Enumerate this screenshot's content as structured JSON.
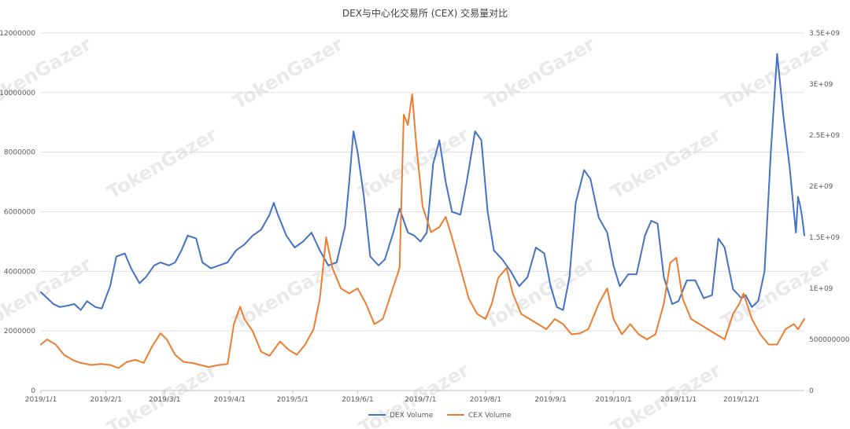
{
  "chart_data": {
    "type": "line",
    "title": "DEX与中心化交易所 (CEX) 交易量对比",
    "watermark": "TokenGazer",
    "x_start": "2019-01-01",
    "x_end": "2019-12-31",
    "x_ticks": [
      "2019/1/1",
      "2019/2/1",
      "2019/3/1",
      "2019/4/1",
      "2019/5/1",
      "2019/6/1",
      "2019/7/1",
      "2019/8/1",
      "2019/9/1",
      "2019/10/1",
      "2019/11/1",
      "2019/12/1"
    ],
    "y_left": {
      "min": 0,
      "max": 12000000,
      "ticks": [
        "0",
        "2000000",
        "4000000",
        "6000000",
        "8000000",
        "10000000",
        "12000000"
      ],
      "tick_values": [
        0,
        2000000,
        4000000,
        6000000,
        8000000,
        10000000,
        12000000
      ]
    },
    "y_right": {
      "min": 0,
      "max": 3500000000,
      "ticks": [
        "0",
        "500000000",
        "1E+09",
        "1.5E+09",
        "2E+09",
        "2.5E+09",
        "3E+09",
        "3.5E+09"
      ],
      "tick_values": [
        0,
        500000000,
        1000000000,
        1500000000,
        2000000000,
        2500000000,
        3000000000,
        3500000000
      ]
    },
    "grid": "horizontal",
    "legend_position": "bottom-center",
    "series": [
      {
        "name": "DEX Volume",
        "axis": "left",
        "color": "#4472C4",
        "points": [
          [
            "2019-01-01",
            3300000
          ],
          [
            "2019-01-04",
            3100000
          ],
          [
            "2019-01-07",
            2900000
          ],
          [
            "2019-01-10",
            2800000
          ],
          [
            "2019-01-14",
            2850000
          ],
          [
            "2019-01-17",
            2900000
          ],
          [
            "2019-01-20",
            2700000
          ],
          [
            "2019-01-23",
            3000000
          ],
          [
            "2019-01-27",
            2800000
          ],
          [
            "2019-01-30",
            2750000
          ],
          [
            "2019-02-03",
            3500000
          ],
          [
            "2019-02-06",
            4500000
          ],
          [
            "2019-02-10",
            4600000
          ],
          [
            "2019-02-13",
            4100000
          ],
          [
            "2019-02-17",
            3600000
          ],
          [
            "2019-02-20",
            3800000
          ],
          [
            "2019-02-24",
            4200000
          ],
          [
            "2019-02-27",
            4300000
          ],
          [
            "2019-03-03",
            4200000
          ],
          [
            "2019-03-06",
            4300000
          ],
          [
            "2019-03-09",
            4700000
          ],
          [
            "2019-03-12",
            5200000
          ],
          [
            "2019-03-16",
            5100000
          ],
          [
            "2019-03-19",
            4300000
          ],
          [
            "2019-03-23",
            4100000
          ],
          [
            "2019-03-27",
            4200000
          ],
          [
            "2019-03-31",
            4300000
          ],
          [
            "2019-04-04",
            4700000
          ],
          [
            "2019-04-08",
            4900000
          ],
          [
            "2019-04-12",
            5200000
          ],
          [
            "2019-04-16",
            5400000
          ],
          [
            "2019-04-20",
            5900000
          ],
          [
            "2019-04-22",
            6300000
          ],
          [
            "2019-04-24",
            5900000
          ],
          [
            "2019-04-28",
            5200000
          ],
          [
            "2019-05-02",
            4800000
          ],
          [
            "2019-05-06",
            5000000
          ],
          [
            "2019-05-10",
            5300000
          ],
          [
            "2019-05-14",
            4700000
          ],
          [
            "2019-05-18",
            4200000
          ],
          [
            "2019-05-22",
            4300000
          ],
          [
            "2019-05-26",
            5500000
          ],
          [
            "2019-05-28",
            7000000
          ],
          [
            "2019-05-30",
            8700000
          ],
          [
            "2019-06-01",
            8000000
          ],
          [
            "2019-06-04",
            6500000
          ],
          [
            "2019-06-07",
            4500000
          ],
          [
            "2019-06-11",
            4200000
          ],
          [
            "2019-06-14",
            4400000
          ],
          [
            "2019-06-18",
            5300000
          ],
          [
            "2019-06-21",
            6100000
          ],
          [
            "2019-06-25",
            5300000
          ],
          [
            "2019-06-28",
            5200000
          ],
          [
            "2019-07-01",
            5000000
          ],
          [
            "2019-07-04",
            5300000
          ],
          [
            "2019-07-07",
            7600000
          ],
          [
            "2019-07-10",
            8400000
          ],
          [
            "2019-07-13",
            7000000
          ],
          [
            "2019-07-16",
            6000000
          ],
          [
            "2019-07-20",
            5900000
          ],
          [
            "2019-07-23",
            7000000
          ],
          [
            "2019-07-27",
            8700000
          ],
          [
            "2019-07-30",
            8400000
          ],
          [
            "2019-08-02",
            6000000
          ],
          [
            "2019-08-05",
            4700000
          ],
          [
            "2019-08-09",
            4400000
          ],
          [
            "2019-08-13",
            4000000
          ],
          [
            "2019-08-17",
            3500000
          ],
          [
            "2019-08-21",
            3800000
          ],
          [
            "2019-08-25",
            4800000
          ],
          [
            "2019-08-29",
            4600000
          ],
          [
            "2019-09-01",
            3500000
          ],
          [
            "2019-09-04",
            2800000
          ],
          [
            "2019-09-07",
            2700000
          ],
          [
            "2019-09-10",
            3800000
          ],
          [
            "2019-09-13",
            6300000
          ],
          [
            "2019-09-17",
            7400000
          ],
          [
            "2019-09-20",
            7100000
          ],
          [
            "2019-09-24",
            5800000
          ],
          [
            "2019-09-28",
            5300000
          ],
          [
            "2019-10-01",
            4200000
          ],
          [
            "2019-10-04",
            3500000
          ],
          [
            "2019-10-08",
            3900000
          ],
          [
            "2019-10-12",
            3900000
          ],
          [
            "2019-10-16",
            5200000
          ],
          [
            "2019-10-19",
            5700000
          ],
          [
            "2019-10-22",
            5600000
          ],
          [
            "2019-10-25",
            3800000
          ],
          [
            "2019-10-29",
            2900000
          ],
          [
            "2019-11-01",
            3000000
          ],
          [
            "2019-11-05",
            3700000
          ],
          [
            "2019-11-09",
            3700000
          ],
          [
            "2019-11-13",
            3100000
          ],
          [
            "2019-11-17",
            3200000
          ],
          [
            "2019-11-20",
            5100000
          ],
          [
            "2019-11-23",
            4800000
          ],
          [
            "2019-11-27",
            3400000
          ],
          [
            "2019-12-01",
            3100000
          ],
          [
            "2019-12-03",
            3200000
          ],
          [
            "2019-12-06",
            2800000
          ],
          [
            "2019-12-09",
            3000000
          ],
          [
            "2019-12-12",
            4000000
          ],
          [
            "2019-12-15",
            8000000
          ],
          [
            "2019-12-18",
            11300000
          ],
          [
            "2019-12-21",
            9200000
          ],
          [
            "2019-12-24",
            7500000
          ],
          [
            "2019-12-26",
            6000000
          ],
          [
            "2019-12-27",
            5300000
          ],
          [
            "2019-12-28",
            6500000
          ],
          [
            "2019-12-29",
            6200000
          ],
          [
            "2019-12-30",
            5800000
          ],
          [
            "2019-12-31",
            5200000
          ]
        ]
      },
      {
        "name": "CEX Volume",
        "axis": "right",
        "color": "#ED7D31",
        "points": [
          [
            "2019-01-01",
            450000000
          ],
          [
            "2019-01-04",
            500000000
          ],
          [
            "2019-01-08",
            450000000
          ],
          [
            "2019-01-12",
            350000000
          ],
          [
            "2019-01-16",
            300000000
          ],
          [
            "2019-01-20",
            270000000
          ],
          [
            "2019-01-25",
            250000000
          ],
          [
            "2019-01-30",
            260000000
          ],
          [
            "2019-02-03",
            250000000
          ],
          [
            "2019-02-07",
            220000000
          ],
          [
            "2019-02-11",
            280000000
          ],
          [
            "2019-02-15",
            300000000
          ],
          [
            "2019-02-19",
            270000000
          ],
          [
            "2019-02-23",
            430000000
          ],
          [
            "2019-02-27",
            560000000
          ],
          [
            "2019-03-02",
            500000000
          ],
          [
            "2019-03-06",
            350000000
          ],
          [
            "2019-03-10",
            280000000
          ],
          [
            "2019-03-14",
            270000000
          ],
          [
            "2019-03-18",
            250000000
          ],
          [
            "2019-03-22",
            230000000
          ],
          [
            "2019-03-27",
            250000000
          ],
          [
            "2019-03-31",
            260000000
          ],
          [
            "2019-04-03",
            650000000
          ],
          [
            "2019-04-06",
            820000000
          ],
          [
            "2019-04-08",
            700000000
          ],
          [
            "2019-04-12",
            580000000
          ],
          [
            "2019-04-16",
            380000000
          ],
          [
            "2019-04-20",
            340000000
          ],
          [
            "2019-04-25",
            480000000
          ],
          [
            "2019-04-29",
            400000000
          ],
          [
            "2019-05-03",
            350000000
          ],
          [
            "2019-05-07",
            450000000
          ],
          [
            "2019-05-11",
            600000000
          ],
          [
            "2019-05-14",
            900000000
          ],
          [
            "2019-05-17",
            1500000000
          ],
          [
            "2019-05-20",
            1200000000
          ],
          [
            "2019-05-24",
            1000000000
          ],
          [
            "2019-05-28",
            950000000
          ],
          [
            "2019-06-01",
            1000000000
          ],
          [
            "2019-06-05",
            850000000
          ],
          [
            "2019-06-09",
            650000000
          ],
          [
            "2019-06-13",
            700000000
          ],
          [
            "2019-06-17",
            950000000
          ],
          [
            "2019-06-21",
            1200000000
          ],
          [
            "2019-06-23",
            2700000000
          ],
          [
            "2019-06-25",
            2600000000
          ],
          [
            "2019-06-27",
            2900000000
          ],
          [
            "2019-06-29",
            2400000000
          ],
          [
            "2019-07-02",
            1800000000
          ],
          [
            "2019-07-06",
            1550000000
          ],
          [
            "2019-07-10",
            1600000000
          ],
          [
            "2019-07-13",
            1700000000
          ],
          [
            "2019-07-16",
            1500000000
          ],
          [
            "2019-07-20",
            1200000000
          ],
          [
            "2019-07-24",
            900000000
          ],
          [
            "2019-07-28",
            750000000
          ],
          [
            "2019-08-01",
            700000000
          ],
          [
            "2019-08-04",
            850000000
          ],
          [
            "2019-08-07",
            1100000000
          ],
          [
            "2019-08-11",
            1200000000
          ],
          [
            "2019-08-14",
            950000000
          ],
          [
            "2019-08-18",
            750000000
          ],
          [
            "2019-08-22",
            700000000
          ],
          [
            "2019-08-26",
            650000000
          ],
          [
            "2019-08-30",
            600000000
          ],
          [
            "2019-09-03",
            700000000
          ],
          [
            "2019-09-07",
            650000000
          ],
          [
            "2019-09-11",
            550000000
          ],
          [
            "2019-09-15",
            560000000
          ],
          [
            "2019-09-19",
            600000000
          ],
          [
            "2019-09-24",
            850000000
          ],
          [
            "2019-09-28",
            1000000000
          ],
          [
            "2019-10-01",
            700000000
          ],
          [
            "2019-10-05",
            550000000
          ],
          [
            "2019-10-09",
            650000000
          ],
          [
            "2019-10-13",
            550000000
          ],
          [
            "2019-10-17",
            500000000
          ],
          [
            "2019-10-21",
            550000000
          ],
          [
            "2019-10-25",
            850000000
          ],
          [
            "2019-10-28",
            1250000000
          ],
          [
            "2019-10-31",
            1300000000
          ],
          [
            "2019-11-03",
            900000000
          ],
          [
            "2019-11-07",
            700000000
          ],
          [
            "2019-11-11",
            650000000
          ],
          [
            "2019-11-15",
            600000000
          ],
          [
            "2019-11-19",
            550000000
          ],
          [
            "2019-11-23",
            500000000
          ],
          [
            "2019-11-27",
            750000000
          ],
          [
            "2019-11-30",
            850000000
          ],
          [
            "2019-12-02",
            950000000
          ],
          [
            "2019-12-06",
            700000000
          ],
          [
            "2019-12-10",
            550000000
          ],
          [
            "2019-12-14",
            450000000
          ],
          [
            "2019-12-18",
            450000000
          ],
          [
            "2019-12-22",
            600000000
          ],
          [
            "2019-12-26",
            650000000
          ],
          [
            "2019-12-28",
            600000000
          ],
          [
            "2019-12-31",
            700000000
          ]
        ]
      }
    ]
  }
}
